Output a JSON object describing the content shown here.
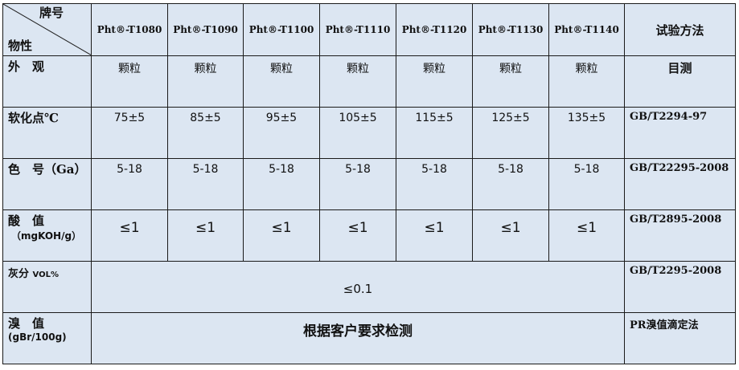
{
  "header": {
    "corner_top": "牌号",
    "corner_bottom": "物性",
    "grades": [
      "Pht®-T1080",
      "Pht®-T1090",
      "Pht®-T1100",
      "Pht®-T1110",
      "Pht®-T1120",
      "Pht®-T1130",
      "Pht®-T1140"
    ],
    "method": "试验方法"
  },
  "rows": [
    {
      "label": "外　观",
      "values": [
        "颗粒",
        "颗粒",
        "颗粒",
        "颗粒",
        "颗粒",
        "颗粒",
        "颗粒"
      ],
      "method": "目测"
    },
    {
      "label": "软化点℃",
      "values": [
        "75±5",
        "85±5",
        "95±5",
        "105±5",
        "115±5",
        "125±5",
        "135±5"
      ],
      "method": "GB/T2294-97"
    },
    {
      "label": "色　号（Ga）",
      "values": [
        "5-18",
        "5-18",
        "5-18",
        "5-18",
        "5-18",
        "5-18",
        "5-18"
      ],
      "method": "GB/T22295-2008"
    },
    {
      "label": "酸　值",
      "sublabel": "（mgKOH/g）",
      "values": [
        "≤1",
        "≤1",
        "≤1",
        "≤1",
        "≤1",
        "≤1",
        "≤1"
      ],
      "method": "GB/T2895-2008"
    }
  ],
  "ash": {
    "label": "灰分",
    "unit": "VOL%",
    "value": "≤0.1",
    "method": "GB/T2295-2008"
  },
  "bromine": {
    "label": "溴　值",
    "sublabel": "(gBr/100g)",
    "value": "根据客户要求检测",
    "method": "PR溴值滴定法"
  }
}
